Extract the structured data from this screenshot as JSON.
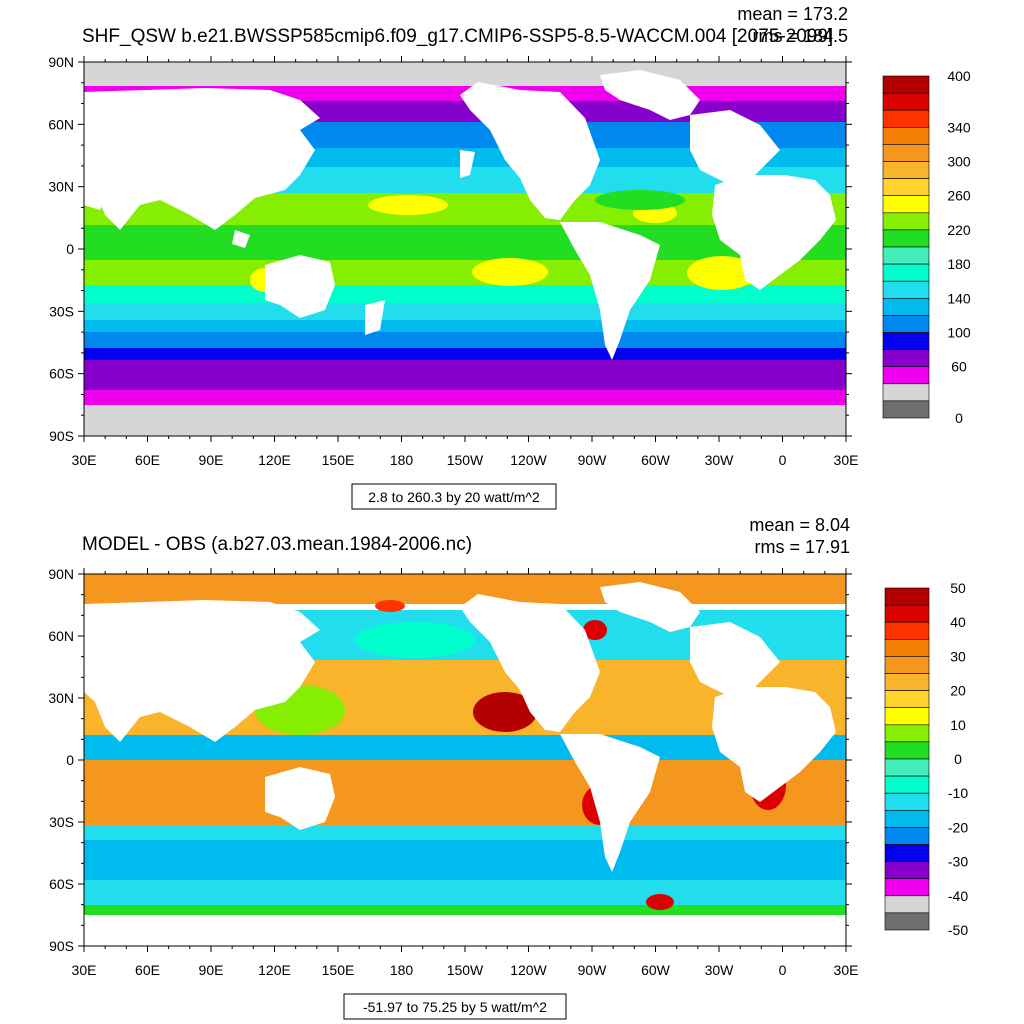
{
  "panels": [
    {
      "title": "SHF_QSW b.e21.BWSSP585cmip6.f09_g17.CMIP6-SSP5-8.5-WACCM.004 [2075-2099]",
      "mean_text": "mean = 173.2",
      "rms_text": "rms = 184.5",
      "range_text": "2.8 to 260.3 by 20 watt/m^2",
      "lat_ticks": [
        "90N",
        "60N",
        "30N",
        "0",
        "30S",
        "60S",
        "90S"
      ],
      "lon_ticks": [
        "30E",
        "60E",
        "90E",
        "120E",
        "150E",
        "180",
        "150W",
        "120W",
        "90W",
        "60W",
        "30W",
        "0",
        "30E"
      ],
      "colorbar": {
        "labels": [
          {
            "text": "400",
            "level": 0
          },
          {
            "text": "340",
            "level": 3
          },
          {
            "text": "300",
            "level": 5
          },
          {
            "text": "260",
            "level": 7
          },
          {
            "text": "220",
            "level": 9
          },
          {
            "text": "180",
            "level": 11
          },
          {
            "text": "140",
            "level": 13
          },
          {
            "text": "100",
            "level": 15
          },
          {
            "text": "60",
            "level": 17
          },
          {
            "text": "0",
            "level": 20
          }
        ],
        "colors": [
          "#b40000",
          "#dc0000",
          "#ff3300",
          "#f57e05",
          "#f5961e",
          "#f8b42b",
          "#ffd22c",
          "#ffff00",
          "#86ee00",
          "#22dd22",
          "#44eebb",
          "#00ffcc",
          "#22ddee",
          "#00bbee",
          "#0088ee",
          "#0000ee",
          "#8800cc",
          "#ee00ee",
          "#d6d6d6",
          "#6e6e6e"
        ]
      }
    },
    {
      "title": "MODEL - OBS (a.b27.03.mean.1984-2006.nc)",
      "mean_text": "mean = 8.04",
      "rms_text": "rms = 17.91",
      "range_text": "-51.97 to 75.25 by 5 watt/m^2",
      "lat_ticks": [
        "90N",
        "60N",
        "30N",
        "0",
        "30S",
        "60S",
        "90S"
      ],
      "lon_ticks": [
        "30E",
        "60E",
        "90E",
        "120E",
        "150E",
        "180",
        "150W",
        "120W",
        "90W",
        "60W",
        "30W",
        "0",
        "30E"
      ],
      "colorbar": {
        "labels": [
          {
            "text": "50",
            "level": 0
          },
          {
            "text": "40",
            "level": 2
          },
          {
            "text": "30",
            "level": 4
          },
          {
            "text": "20",
            "level": 6
          },
          {
            "text": "10",
            "level": 8
          },
          {
            "text": "0",
            "level": 10
          },
          {
            "text": "-10",
            "level": 12
          },
          {
            "text": "-20",
            "level": 14
          },
          {
            "text": "-30",
            "level": 16
          },
          {
            "text": "-40",
            "level": 18
          },
          {
            "text": "-50",
            "level": 20
          }
        ],
        "colors": [
          "#b40000",
          "#dc0000",
          "#ff3300",
          "#f57e05",
          "#f5961e",
          "#f8b42b",
          "#ffd22c",
          "#ffff00",
          "#86ee00",
          "#22dd22",
          "#44eebb",
          "#00ffcc",
          "#22ddee",
          "#00bbee",
          "#0088ee",
          "#0000ee",
          "#8800cc",
          "#ee00ee",
          "#d6d6d6",
          "#6e6e6e"
        ]
      }
    }
  ]
}
